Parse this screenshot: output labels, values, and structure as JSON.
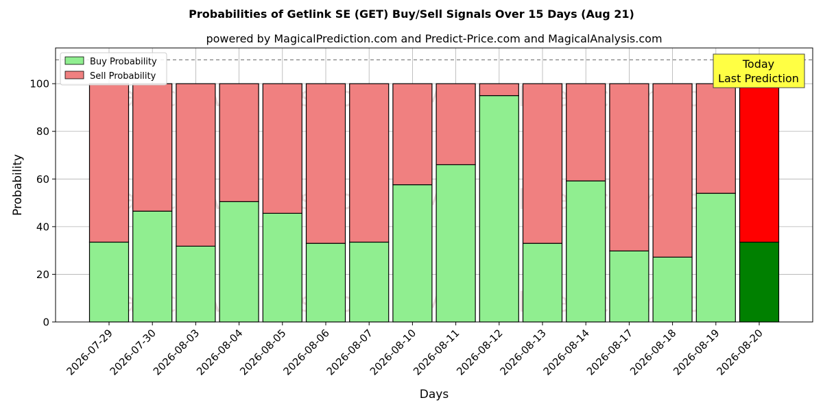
{
  "chart_data": {
    "type": "bar",
    "stacked": true,
    "title": "Probabilities of Getlink SE (GET) Buy/Sell Signals Over 15 Days (Aug 21)",
    "subtitle": "powered by MagicalPrediction.com and Predict-Price.com and MagicalAnalysis.com",
    "xlabel": "Days",
    "ylabel": "Probability",
    "ylim": [
      0,
      115
    ],
    "yticks": [
      0,
      20,
      40,
      60,
      80,
      100
    ],
    "reference_line": 110,
    "grid": true,
    "legend_position": "top-left",
    "categories": [
      "2026-07-29",
      "2026-07-30",
      "2026-08-03",
      "2026-08-04",
      "2026-08-05",
      "2026-08-06",
      "2026-08-07",
      "2026-08-10",
      "2026-08-11",
      "2026-08-12",
      "2026-08-13",
      "2026-08-14",
      "2026-08-17",
      "2026-08-18",
      "2026-08-19",
      "2026-08-20"
    ],
    "series": [
      {
        "name": "Buy Probability",
        "color": "#90ee90",
        "highlight_color": "#008000",
        "values": [
          33.5,
          46.5,
          31.8,
          50.5,
          45.6,
          33.0,
          33.5,
          57.6,
          66.0,
          95.0,
          33.0,
          59.2,
          29.8,
          27.2,
          54.0,
          33.5
        ]
      },
      {
        "name": "Sell Probability",
        "color": "#f08080",
        "highlight_color": "#ff0000",
        "values": [
          66.5,
          53.5,
          68.2,
          49.5,
          54.4,
          67.0,
          66.5,
          42.4,
          34.0,
          5.0,
          67.0,
          40.8,
          70.2,
          72.8,
          46.0,
          66.5
        ]
      }
    ],
    "highlight_index": 15,
    "annotation": {
      "line1": "Today",
      "line2": "Last Prediction",
      "bg_color": "#ffff44"
    },
    "watermarks": [
      "MagicalAnalysis.com",
      "MagicalPrediction.com"
    ]
  }
}
